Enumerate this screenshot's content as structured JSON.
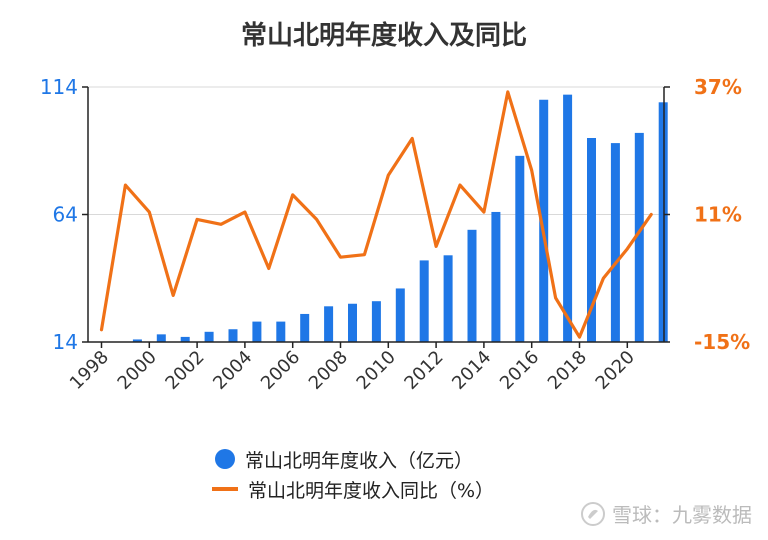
{
  "chart_data": {
    "type": "bar",
    "title": "常山北明年度收入及同比",
    "x": [
      1998,
      1999,
      2000,
      2001,
      2002,
      2003,
      2004,
      2005,
      2006,
      2007,
      2008,
      2009,
      2010,
      2011,
      2012,
      2013,
      2014,
      2015,
      2016,
      2017,
      2018,
      2019,
      2020,
      2021
    ],
    "x_tick_labels": [
      "1998",
      "2000",
      "2002",
      "2004",
      "2006",
      "2008",
      "2010",
      "2012",
      "2014",
      "2016",
      "2018",
      "2020"
    ],
    "y_left_ticks": [
      "114",
      "64",
      "14"
    ],
    "y_right_ticks": [
      "37%",
      "11%",
      "-15%"
    ],
    "ylim_left": [
      14,
      114
    ],
    "ylim_right": [
      -15,
      37
    ],
    "series": [
      {
        "name": "常山北明年度收入（亿元）",
        "type": "bar",
        "axis": "left",
        "color": "#1f77e6",
        "values": [
          null,
          15,
          17,
          16,
          18,
          19,
          22,
          22,
          25,
          28,
          29,
          30,
          35,
          46,
          48,
          58,
          65,
          87,
          109,
          111,
          94,
          92,
          96,
          108
        ]
      },
      {
        "name": "常山北明年度收入同比（%）",
        "type": "line",
        "axis": "right",
        "color": "#f07117",
        "values": [
          -12.5,
          17,
          11.5,
          -5.5,
          10,
          9,
          11.5,
          0,
          15,
          10,
          2.3,
          2.8,
          19,
          26.5,
          4.5,
          17,
          11.5,
          36,
          20,
          -6,
          -14,
          -2,
          4,
          11
        ]
      }
    ],
    "legend_position": "bottom",
    "grid": "horizontal"
  },
  "legend": {
    "items": [
      {
        "label": "常山北明年度收入（亿元）"
      },
      {
        "label": "常山北明年度收入同比（%）"
      }
    ]
  },
  "watermark": {
    "text": "雪球：九雾数据"
  },
  "colors": {
    "bar": "#1f77e6",
    "line": "#f07117",
    "left_axis_text": "#1f77e6",
    "right_axis_text": "#f07117"
  }
}
